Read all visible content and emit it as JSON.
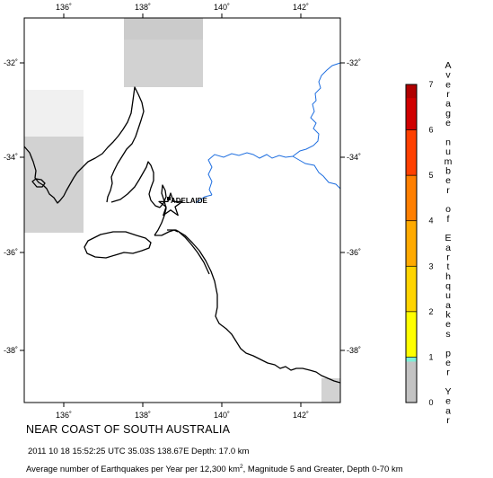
{
  "map": {
    "lon_ticks_top": [
      "136˚",
      "138˚",
      "140˚",
      "142˚"
    ],
    "lon_ticks_bottom": [
      "136˚",
      "138˚",
      "140˚",
      "142˚"
    ],
    "lat_ticks_left": [
      "-32˚",
      "-34˚",
      "-36˚",
      "-38˚"
    ],
    "lat_ticks_right": [
      "-32˚",
      "-34˚",
      "-36˚",
      "-38˚"
    ],
    "city_label": "ADELAIDE",
    "colors": {
      "coast": "#000000",
      "border": "#1f6fe0",
      "gray_cell": "#d2d2d2",
      "gray_cell_light": "#dcdcdc",
      "epicenter": "#000000"
    },
    "icons": {
      "epicenter": "star-icon",
      "city": "city-marker-icon"
    }
  },
  "colorbar": {
    "label_chars": [
      "A",
      "v",
      "e",
      "r",
      "a",
      "g",
      "e",
      "",
      "n",
      "u",
      "m",
      "b",
      "e",
      "r",
      "",
      "o",
      "f",
      "",
      "E",
      "a",
      "r",
      "t",
      "h",
      "q",
      "u",
      "a",
      "k",
      "e",
      "s",
      "",
      "p",
      "e",
      "r",
      "",
      "Y",
      "e",
      "a",
      "r"
    ],
    "ticks": [
      "0",
      "1",
      "2",
      "3",
      "4",
      "5",
      "6",
      "7"
    ],
    "segments": [
      {
        "from": 0,
        "to": 1,
        "color": "#c3c3c3"
      },
      {
        "from": 0.9,
        "to": 1,
        "color": "#7fefd8"
      },
      {
        "from": 1,
        "to": 2,
        "color": "#ffff00"
      },
      {
        "from": 2,
        "to": 3,
        "color": "#ffd400"
      },
      {
        "from": 3,
        "to": 4,
        "color": "#ffaa00"
      },
      {
        "from": 4,
        "to": 5,
        "color": "#ff7f00"
      },
      {
        "from": 5,
        "to": 6,
        "color": "#ff4000"
      },
      {
        "from": 6,
        "to": 7,
        "color": "#d00000"
      },
      {
        "from": 6.7,
        "to": 7,
        "color": "#b00000"
      }
    ]
  },
  "footer": {
    "title": "NEAR COAST OF SOUTH AUSTRALIA",
    "event": "2011 10 18 15:52:25 UTC 35.03S 138.67E Depth: 17.0 km",
    "desc_before": "Average number of Earthquakes per Year per 12,300 km",
    "desc_sup": "2",
    "desc_after": ", Magnitude 5 and Greater, Depth 0-70 km"
  }
}
